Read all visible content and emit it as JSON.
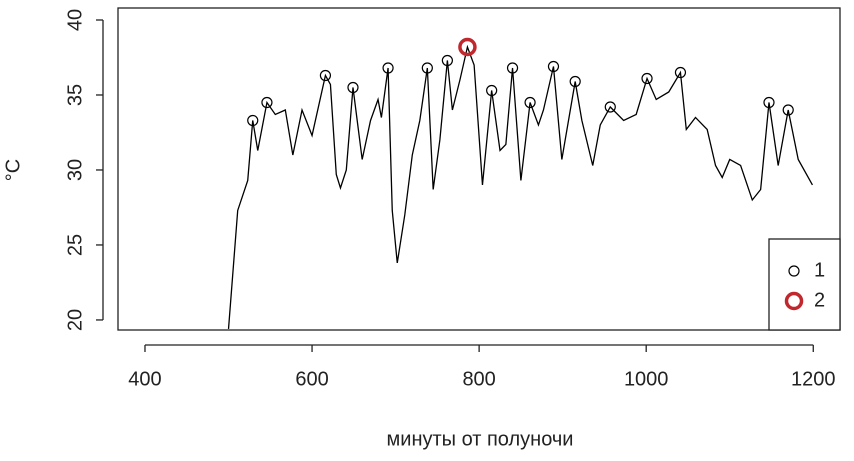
{
  "chart_data": {
    "type": "line",
    "x_label": "минуты от полуночи",
    "y_label": "°C",
    "color": "#000000",
    "x": [
      500,
      511,
      523,
      529,
      535,
      546,
      556,
      568,
      577,
      588,
      600,
      616,
      622,
      629,
      634,
      641,
      649,
      660,
      670,
      679,
      683,
      691,
      696,
      702,
      711,
      720,
      729,
      738,
      745,
      753,
      762,
      768,
      777,
      786,
      794,
      804,
      815,
      825,
      832,
      840,
      850,
      861,
      871,
      877,
      889,
      899,
      915,
      923,
      936,
      945,
      957,
      973,
      988,
      1001,
      1012,
      1027,
      1041,
      1048,
      1059,
      1073,
      1083,
      1091,
      1100,
      1113,
      1127,
      1137,
      1147,
      1158,
      1170,
      1182,
      1199
    ],
    "values": [
      19.4,
      27.3,
      29.3,
      33.3,
      31.3,
      34.5,
      33.7,
      34,
      31,
      34,
      32.3,
      36.3,
      35.7,
      29.7,
      28.8,
      30,
      35.5,
      30.7,
      33.3,
      34.7,
      33.5,
      36.8,
      27.3,
      23.8,
      27,
      31,
      33.3,
      36.8,
      28.7,
      32,
      37.3,
      34,
      36,
      38.2,
      37,
      29,
      35.3,
      31.3,
      31.7,
      36.8,
      29.3,
      34.5,
      33,
      34,
      36.9,
      30.7,
      35.9,
      33.3,
      30.3,
      33,
      34.2,
      33.3,
      33.7,
      36.1,
      34.7,
      35.2,
      36.5,
      32.7,
      33.5,
      32.7,
      30.3,
      29.5,
      30.7,
      30.3,
      28,
      28.7,
      34.5,
      30.3,
      34,
      30.7,
      29
    ],
    "series": [
      {
        "name": "1",
        "color": "#000000",
        "x": [
          529,
          546,
          616,
          649,
          691,
          738,
          762,
          815,
          840,
          861,
          889,
          915,
          957,
          1001,
          1041,
          1147,
          1170
        ],
        "values": [
          33.3,
          34.5,
          36.3,
          35.5,
          36.8,
          36.8,
          37.3,
          35.3,
          36.8,
          34.5,
          36.9,
          35.9,
          34.2,
          36.1,
          36.5,
          34.5,
          34
        ]
      },
      {
        "name": "2",
        "color": "#c0282d",
        "x": [
          786
        ],
        "values": [
          38.2
        ]
      }
    ],
    "xlim": [
      367.7,
      1232
    ],
    "ylim": [
      19.33,
      40.8
    ],
    "xticks": [
      400,
      600,
      800,
      1000,
      1200
    ],
    "yticks": [
      20,
      25,
      30,
      35,
      40
    ],
    "legend": "bottom right"
  }
}
